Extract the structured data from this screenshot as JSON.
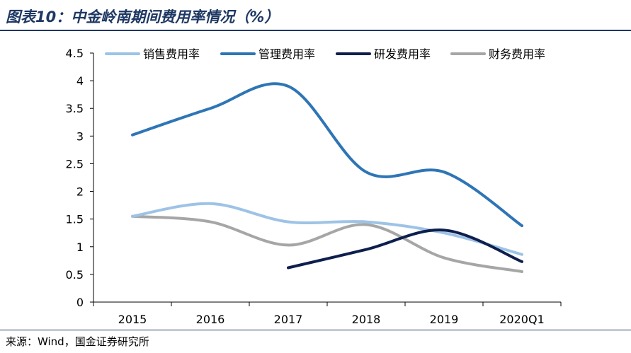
{
  "header": {
    "title": "图表10：中金岭南期间费用率情况（%）"
  },
  "footer": {
    "source": "来源：Wind，国金证券研究所"
  },
  "chart_data": {
    "type": "line",
    "title": "",
    "xlabel": "",
    "ylabel": "",
    "categories": [
      "2015",
      "2016",
      "2017",
      "2018",
      "2019",
      "2020Q1"
    ],
    "ylim": [
      0,
      4.5
    ],
    "yticks": [
      "0",
      "0.5",
      "1",
      "1.5",
      "2",
      "2.5",
      "3",
      "3.5",
      "4",
      "4.5"
    ],
    "legend_position": "top",
    "grid": false,
    "smooth": true,
    "series": [
      {
        "name": "销售费用率",
        "color": "#9dc3e6",
        "values": [
          1.55,
          1.78,
          1.45,
          1.45,
          1.25,
          0.86
        ]
      },
      {
        "name": "管理费用率",
        "color": "#2e75b6",
        "values": [
          3.02,
          3.5,
          3.9,
          2.35,
          2.35,
          1.38
        ]
      },
      {
        "name": "研发费用率",
        "color": "#0e1f4d",
        "values": [
          null,
          null,
          0.62,
          0.95,
          1.3,
          0.73
        ]
      },
      {
        "name": "财务费用率",
        "color": "#a6a6a6",
        "values": [
          1.55,
          1.45,
          1.03,
          1.4,
          0.8,
          0.55
        ]
      }
    ]
  }
}
